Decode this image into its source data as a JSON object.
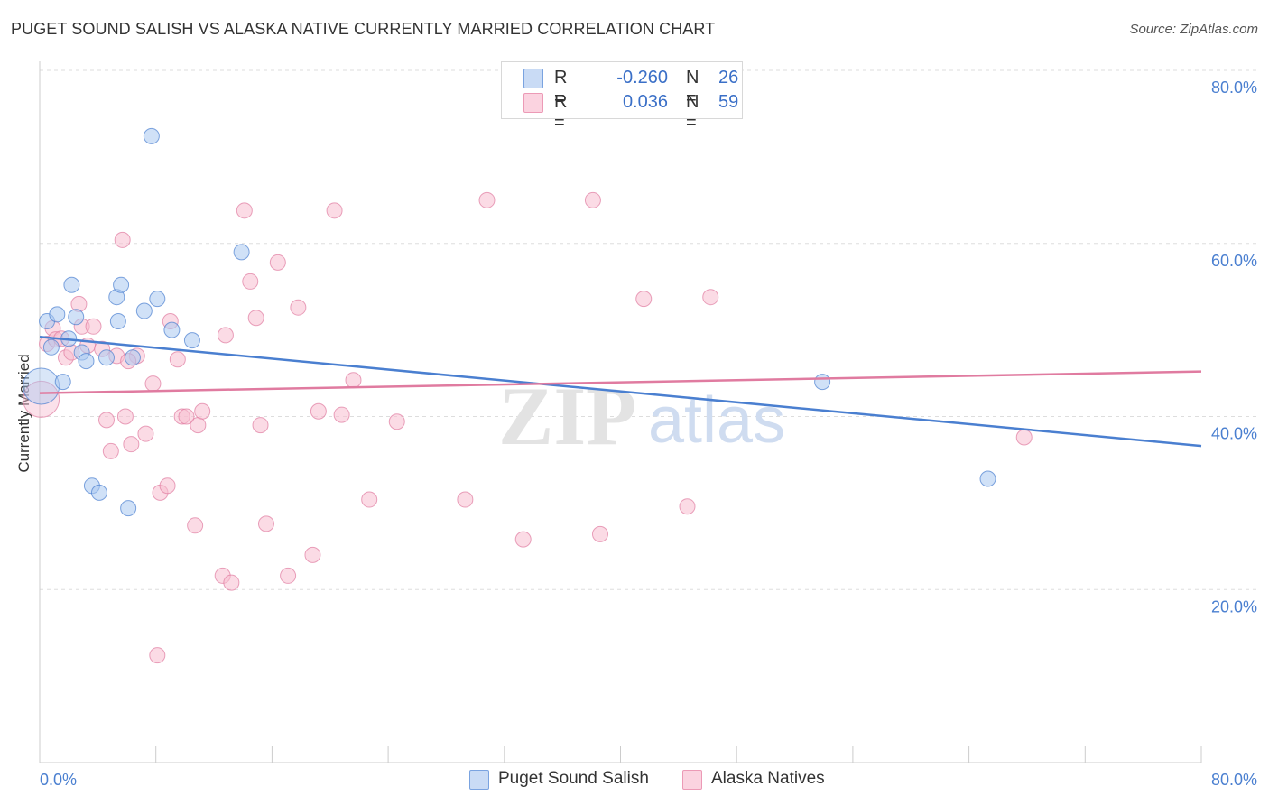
{
  "title": "PUGET SOUND SALISH VS ALASKA NATIVE CURRENTLY MARRIED CORRELATION CHART",
  "source": "Source: ZipAtlas.com",
  "legend": {
    "rows": [
      {
        "r_label": "R =",
        "r_value": "-0.260",
        "n_label": "N =",
        "n_value": "26",
        "color": "#aac8f0"
      },
      {
        "r_label": "R =",
        "r_value": "0.036",
        "n_label": "N =",
        "n_value": "59",
        "color": "#f7bdd0"
      }
    ]
  },
  "bottom_legend": [
    {
      "label": "Puget Sound Salish",
      "color": "#aac8f0"
    },
    {
      "label": "Alaska Natives",
      "color": "#f7bdd0"
    }
  ],
  "watermark": {
    "zip": "ZIP",
    "atlas": "atlas"
  },
  "chart_data": {
    "type": "scatter",
    "title": "PUGET SOUND SALISH VS ALASKA NATIVE CURRENTLY MARRIED CORRELATION CHART",
    "xlabel": "",
    "ylabel": "Currently Married",
    "xlim": [
      0,
      80
    ],
    "ylim": [
      0,
      80
    ],
    "x_tick_labels": [
      {
        "value": 0,
        "label": "0.0%"
      },
      {
        "value": 80,
        "label": "80.0%"
      }
    ],
    "y_tick_labels": [
      {
        "value": 20,
        "label": "20.0%"
      },
      {
        "value": 40,
        "label": "40.0%"
      },
      {
        "value": 60,
        "label": "60.0%"
      },
      {
        "value": 80,
        "label": "80.0%"
      }
    ],
    "grid": "horizontal dashed",
    "legend_position": "top-center",
    "series": [
      {
        "name": "Puget Sound Salish",
        "color": "#4a7fd0",
        "fill": "#aac8f0",
        "points": [
          [
            0.1,
            43.5
          ],
          [
            0.5,
            51
          ],
          [
            0.8,
            48
          ],
          [
            1.2,
            51.8
          ],
          [
            1.6,
            44
          ],
          [
            2.0,
            49
          ],
          [
            2.2,
            55.2
          ],
          [
            2.5,
            51.5
          ],
          [
            2.9,
            47.4
          ],
          [
            3.2,
            46.4
          ],
          [
            3.6,
            32
          ],
          [
            4.1,
            31.2
          ],
          [
            4.6,
            46.8
          ],
          [
            5.3,
            53.8
          ],
          [
            5.4,
            51
          ],
          [
            5.6,
            55.2
          ],
          [
            6.1,
            29.4
          ],
          [
            6.4,
            46.8
          ],
          [
            7.2,
            52.2
          ],
          [
            7.7,
            72.4
          ],
          [
            8.1,
            53.6
          ],
          [
            9.1,
            50
          ],
          [
            10.5,
            48.8
          ],
          [
            13.9,
            59
          ],
          [
            53.9,
            44
          ],
          [
            65.3,
            32.8
          ]
        ],
        "trend": {
          "x": [
            0,
            80
          ],
          "y": [
            49.2,
            36.6
          ]
        }
      },
      {
        "name": "Alaska Natives",
        "color": "#e07ba0",
        "fill": "#f7bdd0",
        "points": [
          [
            0.1,
            42
          ],
          [
            0.5,
            48.4
          ],
          [
            0.9,
            50.2
          ],
          [
            1.1,
            48.9
          ],
          [
            1.5,
            49
          ],
          [
            1.8,
            46.8
          ],
          [
            2.2,
            47.4
          ],
          [
            2.7,
            53
          ],
          [
            2.9,
            50.4
          ],
          [
            3.3,
            48.2
          ],
          [
            3.7,
            50.4
          ],
          [
            4.3,
            47.8
          ],
          [
            4.6,
            39.6
          ],
          [
            4.9,
            36
          ],
          [
            5.3,
            47
          ],
          [
            5.7,
            60.4
          ],
          [
            5.9,
            40
          ],
          [
            6.3,
            36.8
          ],
          [
            6.7,
            47
          ],
          [
            7.3,
            38
          ],
          [
            7.8,
            43.8
          ],
          [
            8.3,
            31.2
          ],
          [
            8.8,
            32
          ],
          [
            9.0,
            51
          ],
          [
            9.5,
            46.6
          ],
          [
            9.8,
            40
          ],
          [
            10.7,
            27.4
          ],
          [
            10.9,
            39
          ],
          [
            11.2,
            40.6
          ],
          [
            12.6,
            21.6
          ],
          [
            12.8,
            49.4
          ],
          [
            13.2,
            20.8
          ],
          [
            14.1,
            63.8
          ],
          [
            14.5,
            55.6
          ],
          [
            14.9,
            51.4
          ],
          [
            15.2,
            39
          ],
          [
            15.6,
            27.6
          ],
          [
            16.4,
            57.8
          ],
          [
            17.1,
            21.6
          ],
          [
            17.8,
            52.6
          ],
          [
            18.8,
            24
          ],
          [
            19.2,
            40.6
          ],
          [
            20.3,
            63.8
          ],
          [
            20.8,
            40.2
          ],
          [
            21.6,
            44.2
          ],
          [
            22.7,
            30.4
          ],
          [
            24.6,
            39.4
          ],
          [
            29.3,
            30.4
          ],
          [
            30.8,
            65
          ],
          [
            33.3,
            25.8
          ],
          [
            38.1,
            65
          ],
          [
            38.6,
            26.4
          ],
          [
            41.6,
            53.6
          ],
          [
            44.6,
            29.6
          ],
          [
            46.2,
            53.8
          ],
          [
            67.8,
            37.6
          ],
          [
            8.1,
            12.4
          ],
          [
            10.1,
            40
          ],
          [
            6.1,
            46.4
          ]
        ],
        "trend": {
          "x": [
            0,
            80
          ],
          "y": [
            42.7,
            45.2
          ]
        }
      }
    ]
  }
}
